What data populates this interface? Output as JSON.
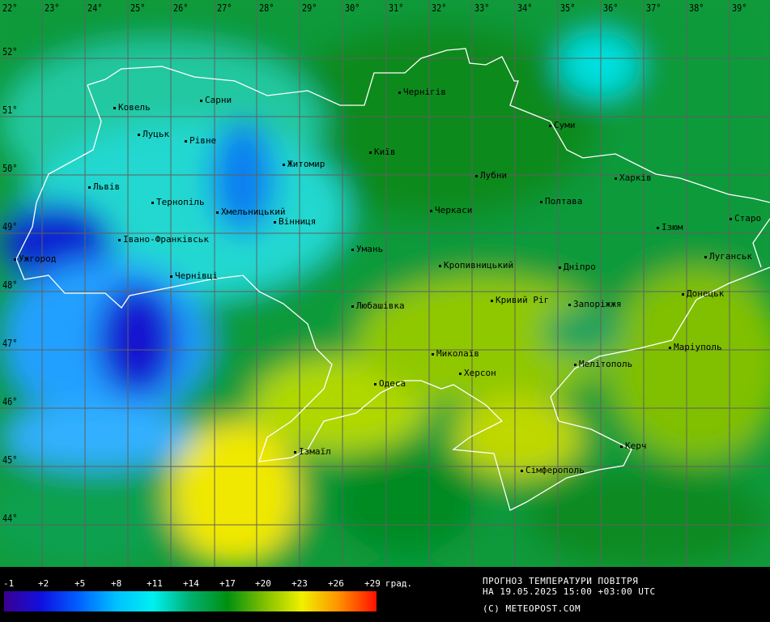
{
  "map": {
    "longitudes": [
      "22°",
      "23°",
      "24°",
      "25°",
      "26°",
      "27°",
      "28°",
      "29°",
      "30°",
      "31°",
      "32°",
      "33°",
      "34°",
      "35°",
      "36°",
      "37°",
      "38°",
      "39°"
    ],
    "latitudes": [
      "52°",
      "51°",
      "50°",
      "49°",
      "48°",
      "47°",
      "46°",
      "45°",
      "44°"
    ],
    "cities": [
      {
        "name": "Ковель"
      },
      {
        "name": "Сарни"
      },
      {
        "name": "Луцьк"
      },
      {
        "name": "Рівне"
      },
      {
        "name": "Житомир"
      },
      {
        "name": "Київ"
      },
      {
        "name": "Чернігів"
      },
      {
        "name": "Суми"
      },
      {
        "name": "Львів"
      },
      {
        "name": "Тернопіль"
      },
      {
        "name": "Хмельницький"
      },
      {
        "name": "Вінниця"
      },
      {
        "name": "Черкаси"
      },
      {
        "name": "Лубни"
      },
      {
        "name": "Полтава"
      },
      {
        "name": "Харків"
      },
      {
        "name": "Ізюм"
      },
      {
        "name": "Старо"
      },
      {
        "name": "Луганськ"
      },
      {
        "name": "Івано-Франківськ"
      },
      {
        "name": "Ужгород"
      },
      {
        "name": "Умань"
      },
      {
        "name": "Кропивницький"
      },
      {
        "name": "Дніпро"
      },
      {
        "name": "Чернівці"
      },
      {
        "name": "Любашівка"
      },
      {
        "name": "Кривий Ріг"
      },
      {
        "name": "Запоріжжя"
      },
      {
        "name": "Донецьк"
      },
      {
        "name": "Маріуполь"
      },
      {
        "name": "Миколаїв"
      },
      {
        "name": "Мелітополь"
      },
      {
        "name": "Одеса"
      },
      {
        "name": "Херсон"
      },
      {
        "name": "Ізмаїл"
      },
      {
        "name": "Керч"
      },
      {
        "name": "Сімферополь"
      }
    ]
  },
  "legend": {
    "ticks": [
      "-1",
      "+2",
      "+5",
      "+8",
      "+11",
      "+14",
      "+17",
      "+20",
      "+23",
      "+26",
      "+29"
    ],
    "unit": "град.",
    "colors": [
      "#3a0090",
      "#1010e0",
      "#0060ff",
      "#00c0ff",
      "#00f0f0",
      "#00b070",
      "#009010",
      "#80c000",
      "#f0f000",
      "#ff9000",
      "#ff1000"
    ]
  },
  "footer": {
    "title": "ПРОГНОЗ ТЕМПЕРАТУРИ ПОВІТРЯ",
    "datetime": "НА 19.05.2025 15:00 +03:00 UTC",
    "copyright": "(C) METEOPOST.COM"
  }
}
